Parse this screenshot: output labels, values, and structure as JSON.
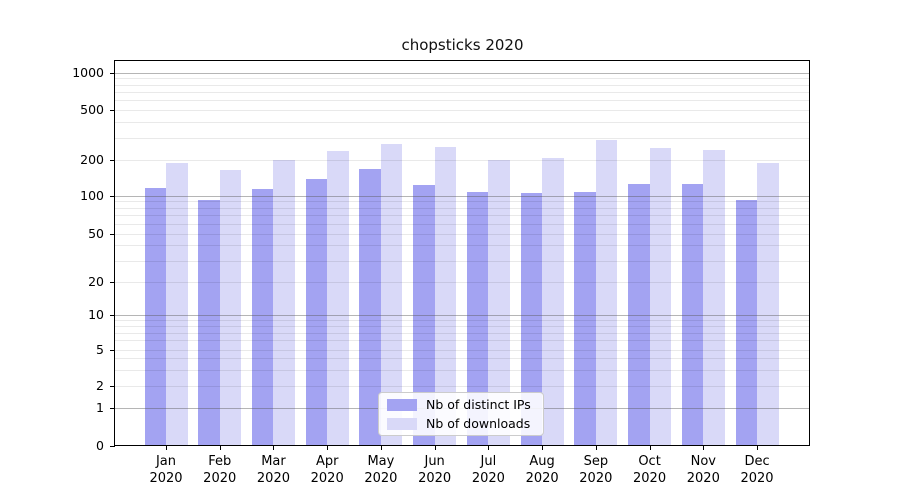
{
  "chart_data": {
    "type": "bar",
    "title": "chopsticks 2020",
    "categories": [
      "Jan",
      "Feb",
      "Mar",
      "Apr",
      "May",
      "Jun",
      "Jul",
      "Aug",
      "Sep",
      "Oct",
      "Nov",
      "Dec"
    ],
    "year": "2020",
    "series": [
      {
        "name": "Nb of distinct IPs",
        "color": "#a3a3f2",
        "values": [
          116,
          93,
          113,
          137,
          166,
          123,
          107,
          106,
          108,
          124,
          126,
          92
        ]
      },
      {
        "name": "Nb of downloads",
        "color": "#d9d9f8",
        "values": [
          188,
          163,
          200,
          234,
          266,
          250,
          200,
          207,
          287,
          249,
          237,
          186
        ]
      }
    ],
    "y_axis": {
      "tick_labels": [
        1000,
        500,
        200,
        100,
        50,
        20,
        10,
        5,
        2,
        1,
        0
      ],
      "scale": "log (1-2-5 ticks), linear segment between 0 and 1",
      "ylim": [
        0,
        1270
      ]
    },
    "grid": true,
    "legend_position": "lower center"
  }
}
